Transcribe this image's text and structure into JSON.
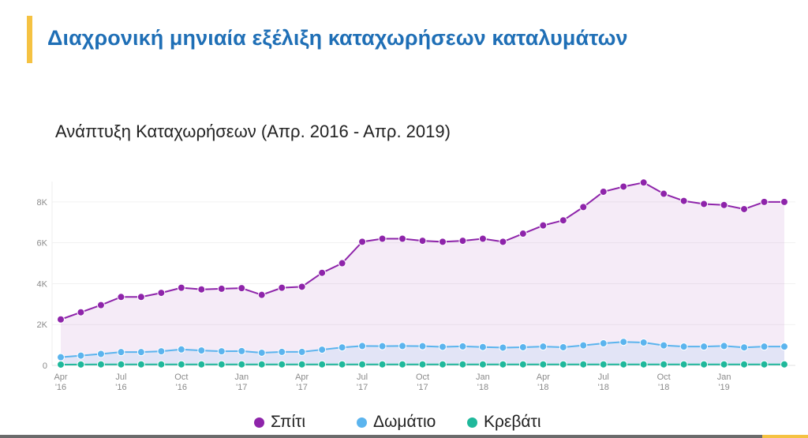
{
  "header": {
    "title": "Διαχρονική μηνιαία εξέλιξη καταχωρήσεων καταλυμάτων",
    "accent_color": "#f5c242",
    "title_color": "#1f6fb6"
  },
  "chart_data": {
    "type": "line",
    "title": "Ανάπτυξη Καταχωρήσεων (Απρ. 2016 - Απρ. 2019)",
    "xlabel": "",
    "ylabel": "",
    "ylim": [
      0,
      9000
    ],
    "y_ticks": [
      {
        "value": 0,
        "label": "0"
      },
      {
        "value": 2000,
        "label": "2K"
      },
      {
        "value": 4000,
        "label": "4K"
      },
      {
        "value": 6000,
        "label": "6K"
      },
      {
        "value": 8000,
        "label": "8K"
      }
    ],
    "x": [
      "2016-04",
      "2016-05",
      "2016-06",
      "2016-07",
      "2016-08",
      "2016-09",
      "2016-10",
      "2016-11",
      "2016-12",
      "2017-01",
      "2017-02",
      "2017-03",
      "2017-04",
      "2017-05",
      "2017-06",
      "2017-07",
      "2017-08",
      "2017-09",
      "2017-10",
      "2017-11",
      "2017-12",
      "2018-01",
      "2018-02",
      "2018-03",
      "2018-04",
      "2018-05",
      "2018-06",
      "2018-07",
      "2018-08",
      "2018-09",
      "2018-10",
      "2018-11",
      "2018-12",
      "2019-01",
      "2019-02",
      "2019-03",
      "2019-04"
    ],
    "x_ticks": [
      {
        "x": "2016-04",
        "label": [
          "Apr",
          "'16"
        ]
      },
      {
        "x": "2016-07",
        "label": [
          "Jul",
          "'16"
        ]
      },
      {
        "x": "2016-10",
        "label": [
          "Oct",
          "'16"
        ]
      },
      {
        "x": "2017-01",
        "label": [
          "Jan",
          "'17"
        ]
      },
      {
        "x": "2017-04",
        "label": [
          "Apr",
          "'17"
        ]
      },
      {
        "x": "2017-07",
        "label": [
          "Jul",
          "'17"
        ]
      },
      {
        "x": "2017-10",
        "label": [
          "Oct",
          "'17"
        ]
      },
      {
        "x": "2018-01",
        "label": [
          "Jan",
          "'18"
        ]
      },
      {
        "x": "2018-04",
        "label": [
          "Apr",
          "'18"
        ]
      },
      {
        "x": "2018-07",
        "label": [
          "Jul",
          "'18"
        ]
      },
      {
        "x": "2018-10",
        "label": [
          "Oct",
          "'18"
        ]
      },
      {
        "x": "2019-01",
        "label": [
          "Jan",
          "'19"
        ]
      }
    ],
    "grid": true,
    "legend_position": "bottom",
    "series": [
      {
        "name": "Σπίτι",
        "color": "#8e24aa",
        "fill": true,
        "values": [
          2250,
          2600,
          2950,
          3350,
          3350,
          3550,
          3800,
          3720,
          3750,
          3780,
          3450,
          3800,
          3850,
          4530,
          5000,
          6050,
          6200,
          6200,
          6100,
          6050,
          6100,
          6200,
          6050,
          6450,
          6850,
          7100,
          7750,
          8500,
          8750,
          8950,
          8400,
          8050,
          7900,
          7850,
          7650,
          8000,
          8000
        ]
      },
      {
        "name": "Δωμάτιο",
        "color": "#5bb4ee",
        "fill": true,
        "values": [
          400,
          480,
          560,
          650,
          650,
          690,
          780,
          730,
          690,
          700,
          620,
          660,
          660,
          770,
          880,
          950,
          940,
          950,
          940,
          910,
          930,
          900,
          870,
          890,
          920,
          890,
          980,
          1080,
          1150,
          1120,
          980,
          920,
          920,
          950,
          880,
          920,
          920
        ]
      },
      {
        "name": "Κρεβάτι",
        "color": "#1fb89b",
        "fill": false,
        "values": [
          40,
          45,
          50,
          50,
          50,
          50,
          50,
          50,
          50,
          50,
          50,
          50,
          50,
          50,
          50,
          50,
          50,
          50,
          50,
          50,
          50,
          50,
          50,
          50,
          50,
          50,
          50,
          50,
          50,
          50,
          50,
          50,
          50,
          50,
          50,
          50,
          50
        ]
      }
    ]
  }
}
